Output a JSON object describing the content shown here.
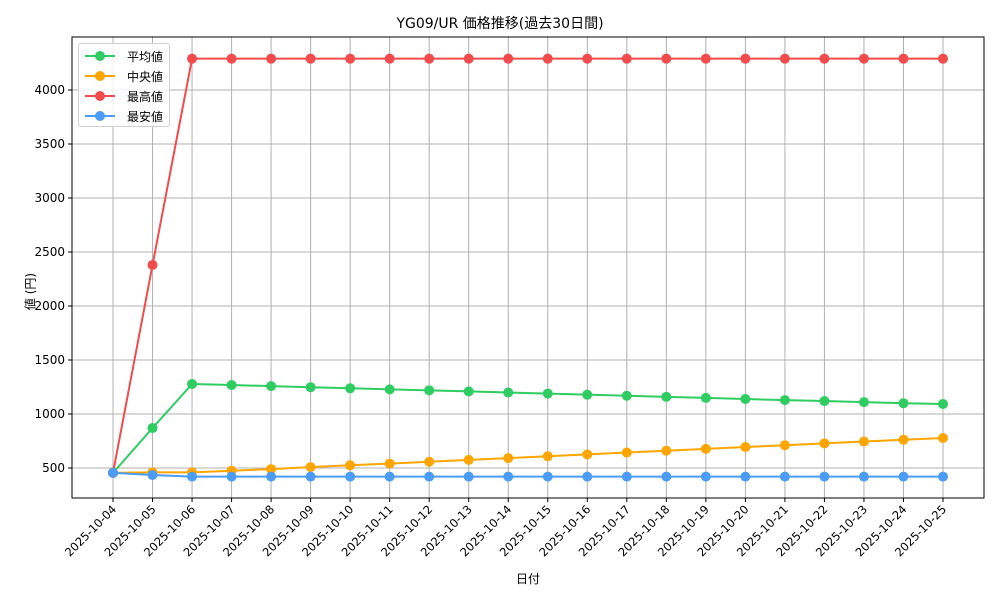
{
  "chart_data": {
    "type": "line",
    "title": "YG09/UR 価格推移(過去30日間)",
    "xlabel": "日付",
    "ylabel": "値 (円)",
    "ylim": [
      230,
      4430
    ],
    "yticks": [
      500,
      1000,
      1500,
      2000,
      2500,
      3000,
      3500,
      4000
    ],
    "grid": true,
    "legend_position": "upper left",
    "categories": [
      "2025-10-04",
      "2025-10-05",
      "2025-10-06",
      "2025-10-07",
      "2025-10-08",
      "2025-10-09",
      "2025-10-10",
      "2025-10-11",
      "2025-10-12",
      "2025-10-13",
      "2025-10-14",
      "2025-10-15",
      "2025-10-16",
      "2025-10-17",
      "2025-10-18",
      "2025-10-19",
      "2025-10-20",
      "2025-10-21",
      "2025-10-22",
      "2025-10-23",
      "2025-10-24",
      "2025-10-25"
    ],
    "series": [
      {
        "name": "平均値",
        "color": "#2ecc61",
        "values": [
          455,
          870,
          1278,
          1268,
          1258,
          1248,
          1238,
          1228,
          1219,
          1209,
          1199,
          1189,
          1179,
          1169,
          1159,
          1149,
          1139,
          1129,
          1120,
          1110,
          1100,
          1093
        ]
      },
      {
        "name": "中央値",
        "color": "#ffa500",
        "values": [
          455,
          460,
          460,
          475,
          490,
          508,
          525,
          541,
          558,
          575,
          592,
          609,
          626,
          643,
          660,
          677,
          694,
          711,
          728,
          745,
          762,
          778
        ]
      },
      {
        "name": "最高値",
        "color": "#f24b4b",
        "values": [
          455,
          2380,
          4290,
          4290,
          4290,
          4290,
          4290,
          4290,
          4290,
          4290,
          4290,
          4290,
          4290,
          4290,
          4290,
          4290,
          4290,
          4290,
          4290,
          4290,
          4290,
          4290
        ]
      },
      {
        "name": "最安値",
        "color": "#4a9cf7",
        "values": [
          455,
          435,
          420,
          420,
          420,
          420,
          420,
          420,
          420,
          420,
          420,
          420,
          420,
          420,
          420,
          420,
          420,
          420,
          420,
          420,
          420,
          420
        ]
      }
    ]
  }
}
